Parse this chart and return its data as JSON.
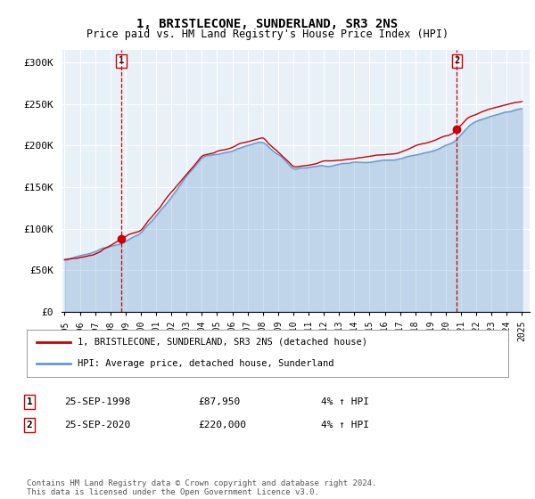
{
  "title": "1, BRISTLECONE, SUNDERLAND, SR3 2NS",
  "subtitle": "Price paid vs. HM Land Registry's House Price Index (HPI)",
  "ylabel_ticks": [
    "£0",
    "£50K",
    "£100K",
    "£150K",
    "£200K",
    "£250K",
    "£300K"
  ],
  "ytick_values": [
    0,
    50000,
    100000,
    150000,
    200000,
    250000,
    300000
  ],
  "ylim": [
    0,
    315000
  ],
  "xlim_start": 1994.8,
  "xlim_end": 2025.5,
  "xticks": [
    1995,
    1996,
    1997,
    1998,
    1999,
    2000,
    2001,
    2002,
    2003,
    2004,
    2005,
    2006,
    2007,
    2008,
    2009,
    2010,
    2011,
    2012,
    2013,
    2014,
    2015,
    2016,
    2017,
    2018,
    2019,
    2020,
    2021,
    2022,
    2023,
    2024,
    2025
  ],
  "purchase1_x": 1998.73,
  "purchase1_y": 87950,
  "purchase2_x": 2020.73,
  "purchase2_y": 220000,
  "line_red_color": "#cc0000",
  "line_blue_color": "#6699cc",
  "fill_blue_color": "#ddeeff",
  "marker_color": "#cc0000",
  "dashed_color": "#cc0000",
  "bg_color": "#ffffff",
  "plot_bg_color": "#e8f0f8",
  "grid_color": "#ffffff",
  "legend_label_red": "1, BRISTLECONE, SUNDERLAND, SR3 2NS (detached house)",
  "legend_label_blue": "HPI: Average price, detached house, Sunderland",
  "table_rows": [
    {
      "num": "1",
      "date": "25-SEP-1998",
      "price": "£87,950",
      "hpi": "4% ↑ HPI"
    },
    {
      "num": "2",
      "date": "25-SEP-2020",
      "price": "£220,000",
      "hpi": "4% ↑ HPI"
    }
  ],
  "footer": "Contains HM Land Registry data © Crown copyright and database right 2024.\nThis data is licensed under the Open Government Licence v3.0."
}
